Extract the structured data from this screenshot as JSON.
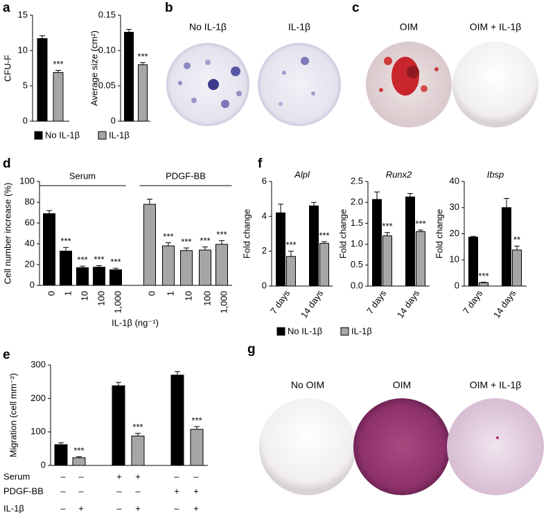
{
  "panel_labels": [
    "a",
    "b",
    "c",
    "d",
    "e",
    "f",
    "g"
  ],
  "well_labels": {
    "b": [
      "No IL-1β",
      "IL-1β"
    ],
    "c": [
      "OIM",
      "OIM + IL-1β"
    ],
    "g": [
      "No OIM",
      "OIM",
      "OIM + IL-1β"
    ]
  },
  "chart_data": [
    {
      "type": "bar",
      "ylabel": "CFU-F",
      "ylim": [
        0,
        15
      ],
      "yticks": [
        0,
        5,
        10,
        15
      ],
      "series": [
        {
          "name": "No IL-1β",
          "color": "#000000",
          "values": [
            11.7
          ],
          "errors": [
            0.4
          ],
          "annotations": [
            null
          ]
        },
        {
          "name": "IL-1β",
          "color": "#a6a6a6",
          "values": [
            6.9
          ],
          "errors": [
            0.3
          ],
          "annotations": [
            "***"
          ]
        }
      ]
    },
    {
      "type": "bar",
      "ylabel": "Average size (cm²)",
      "ylim": [
        0,
        0.15
      ],
      "yticks": [
        0,
        0.05,
        {
          "value": 0.1,
          "label": "0.10"
        },
        0.15
      ],
      "series": [
        {
          "color": "#000000",
          "values": [
            0.126
          ],
          "errors": [
            0.004
          ],
          "annotations": [
            null
          ]
        },
        {
          "color": "#a6a6a6",
          "values": [
            0.08
          ],
          "errors": [
            0.003
          ],
          "annotations": [
            "***"
          ]
        }
      ]
    },
    {
      "type": "bar",
      "ylabel": "Cell number increase (%)",
      "xlabel": "IL-1β (ng⁻¹)",
      "ylim": [
        0,
        100
      ],
      "yticks": [
        0,
        20,
        40,
        60,
        80,
        100
      ],
      "series": [
        {
          "name": "Serum",
          "color": "#000000",
          "categories": [
            "0",
            "1",
            "10",
            "100",
            "1,000"
          ],
          "values": [
            69,
            33,
            17,
            17.5,
            15
          ],
          "errors": [
            3,
            3.5,
            1.5,
            1.5,
            1.5
          ],
          "annotations": [
            null,
            "***",
            "***",
            "***",
            "***"
          ]
        },
        {
          "name": "PDGF-BB",
          "color": "#a6a6a6",
          "categories": [
            "0",
            "1",
            "10",
            "100",
            "1,000"
          ],
          "values": [
            78,
            38,
            33.5,
            34,
            39.5
          ],
          "errors": [
            5,
            3,
            2.5,
            3,
            3.5
          ],
          "annotations": [
            null,
            "***",
            "***",
            "***",
            "***"
          ]
        }
      ]
    },
    {
      "type": "bar",
      "ylabel": "Migration (cell mm⁻²)",
      "ylim": [
        0,
        300
      ],
      "yticks": [
        0,
        100,
        200,
        300
      ],
      "series": [
        {
          "color": "#000000",
          "values": [
            62,
            238,
            270
          ],
          "errors": [
            6,
            10,
            10
          ],
          "annotations": [
            null,
            null,
            null
          ]
        },
        {
          "color": "#a6a6a6",
          "values": [
            23,
            88,
            108
          ],
          "errors": [
            3,
            8,
            8
          ],
          "annotations": [
            "***",
            "***",
            "***"
          ]
        }
      ],
      "conditions": [
        {
          "name": "Serum",
          "signs": [
            "–",
            "–",
            "+",
            "+",
            "–",
            "–"
          ]
        },
        {
          "name": "PDGF-BB",
          "signs": [
            "–",
            "–",
            "–",
            "–",
            "+",
            "+"
          ]
        },
        {
          "name": "IL-1β",
          "signs": [
            "–",
            "+",
            "–",
            "+",
            "–",
            "+"
          ]
        }
      ]
    },
    {
      "type": "bar",
      "title": "Alpl",
      "ylabel": "Fold change",
      "ylim": [
        0,
        6
      ],
      "yticks": [
        0,
        2,
        4,
        6
      ],
      "categories": [
        "7 days",
        "14 days"
      ],
      "series": [
        {
          "name": "No IL-1β",
          "color": "#000000",
          "values": [
            4.2,
            4.6
          ],
          "errors": [
            0.5,
            0.2
          ],
          "annotations": [
            null,
            null
          ]
        },
        {
          "name": "IL-1β",
          "color": "#a6a6a6",
          "values": [
            1.7,
            2.45
          ],
          "errors": [
            0.3,
            0.1
          ],
          "annotations": [
            "***",
            "***"
          ]
        }
      ]
    },
    {
      "type": "bar",
      "title": "Runx2",
      "ylabel": "Fold change",
      "ylim": [
        0,
        2.5
      ],
      "yticks": [
        {
          "value": 0,
          "label": "0.0"
        },
        0.5,
        {
          "value": 1,
          "label": "1.0"
        },
        1.5,
        {
          "value": 2,
          "label": "2.0"
        },
        2.5
      ],
      "categories": [
        "7 days",
        "14 days"
      ],
      "series": [
        {
          "color": "#000000",
          "values": [
            2.07,
            2.13
          ],
          "errors": [
            0.18,
            0.08
          ],
          "annotations": [
            null,
            null
          ]
        },
        {
          "color": "#a6a6a6",
          "values": [
            1.2,
            1.3
          ],
          "errors": [
            0.08,
            0.04
          ],
          "annotations": [
            "***",
            "***"
          ]
        }
      ]
    },
    {
      "type": "bar",
      "title": "Ibsp",
      "ylabel": "Fold change",
      "ylim": [
        0,
        40
      ],
      "yticks": [
        0,
        10,
        20,
        30,
        40
      ],
      "categories": [
        "7 days",
        "14 days"
      ],
      "series": [
        {
          "color": "#000000",
          "values": [
            18.7,
            30
          ],
          "errors": [
            0.3,
            3.5
          ],
          "annotations": [
            null,
            null
          ]
        },
        {
          "color": "#a6a6a6",
          "values": [
            1.3,
            13.8
          ],
          "errors": [
            0.2,
            1.5
          ],
          "annotations": [
            "***",
            "**"
          ]
        }
      ]
    }
  ]
}
